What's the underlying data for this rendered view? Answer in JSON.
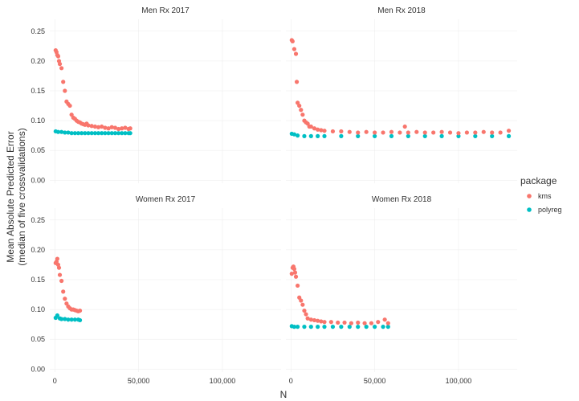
{
  "chart_data": {
    "type": "scatter",
    "ylabel_line1": "Mean Absolute Predicted Error",
    "ylabel_line2": "(median of five crossvalidations)",
    "xlabel": "N",
    "x_ticks": [
      0,
      50000,
      100000
    ],
    "x_tick_labels": [
      "0",
      "50,000",
      "100,000"
    ],
    "y_ticks": [
      0,
      0.05,
      0.1,
      0.15,
      0.2,
      0.25
    ],
    "y_tick_labels": [
      "0.00",
      "0.05",
      "0.10",
      "0.15",
      "0.20",
      "0.25"
    ],
    "xlim": [
      -3000,
      135000
    ],
    "ylim": [
      -0.005,
      0.27
    ],
    "legend": {
      "title": "package",
      "placement": "right",
      "entries": [
        {
          "name": "kms",
          "color": "#F8766D"
        },
        {
          "name": "polyreg",
          "color": "#00BFC4"
        }
      ]
    },
    "panels": [
      {
        "title": "Men Rx 2017",
        "series": [
          {
            "name": "kms",
            "color": "#F8766D",
            "x": [
              500,
              1000,
              1500,
              2000,
              2500,
              3000,
              4000,
              5000,
              6000,
              7000,
              8000,
              9000,
              10000,
              11000,
              12000,
              13000,
              14000,
              15000,
              16000,
              17000,
              18000,
              19000,
              20000,
              22000,
              24000,
              26000,
              28000,
              30000,
              32000,
              34000,
              36000,
              38000,
              40000,
              42000,
              44000,
              45000
            ],
            "y": [
              0.218,
              0.215,
              0.21,
              0.208,
              0.2,
              0.195,
              0.188,
              0.165,
              0.15,
              0.132,
              0.128,
              0.125,
              0.11,
              0.105,
              0.103,
              0.1,
              0.098,
              0.097,
              0.095,
              0.094,
              0.093,
              0.095,
              0.092,
              0.091,
              0.09,
              0.089,
              0.09,
              0.088,
              0.087,
              0.089,
              0.088,
              0.086,
              0.087,
              0.088,
              0.086,
              0.087
            ]
          },
          {
            "name": "polyreg",
            "color": "#00BFC4",
            "x": [
              500,
              2000,
              4000,
              6000,
              8000,
              10000,
              12000,
              14000,
              16000,
              18000,
              20000,
              22000,
              24000,
              26000,
              28000,
              30000,
              32000,
              34000,
              36000,
              38000,
              40000,
              42000,
              44000,
              45000
            ],
            "y": [
              0.082,
              0.081,
              0.081,
              0.08,
              0.08,
              0.079,
              0.079,
              0.079,
              0.079,
              0.079,
              0.079,
              0.079,
              0.079,
              0.079,
              0.079,
              0.079,
              0.079,
              0.079,
              0.079,
              0.079,
              0.079,
              0.079,
              0.079,
              0.079
            ]
          }
        ]
      },
      {
        "title": "Men Rx 2018",
        "series": [
          {
            "name": "kms",
            "color": "#F8766D",
            "x": [
              500,
              1000,
              2000,
              3000,
              3500,
              4000,
              5000,
              6000,
              7000,
              8000,
              9000,
              10000,
              11000,
              12000,
              14000,
              16000,
              18000,
              20000,
              25000,
              30000,
              35000,
              40000,
              45000,
              50000,
              55000,
              60000,
              65000,
              68000,
              70000,
              75000,
              80000,
              85000,
              90000,
              95000,
              100000,
              105000,
              110000,
              115000,
              120000,
              125000,
              130000
            ],
            "y": [
              0.235,
              0.233,
              0.22,
              0.212,
              0.165,
              0.13,
              0.125,
              0.118,
              0.11,
              0.1,
              0.097,
              0.095,
              0.09,
              0.09,
              0.087,
              0.085,
              0.084,
              0.083,
              0.082,
              0.082,
              0.081,
              0.08,
              0.081,
              0.08,
              0.08,
              0.081,
              0.08,
              0.09,
              0.08,
              0.081,
              0.08,
              0.08,
              0.081,
              0.08,
              0.079,
              0.08,
              0.08,
              0.081,
              0.08,
              0.08,
              0.083
            ]
          },
          {
            "name": "polyreg",
            "color": "#00BFC4",
            "x": [
              500,
              2000,
              4000,
              8000,
              12000,
              16000,
              20000,
              30000,
              40000,
              50000,
              60000,
              70000,
              80000,
              90000,
              100000,
              110000,
              120000,
              130000
            ],
            "y": [
              0.078,
              0.077,
              0.075,
              0.074,
              0.074,
              0.074,
              0.074,
              0.074,
              0.074,
              0.074,
              0.074,
              0.074,
              0.074,
              0.074,
              0.074,
              0.074,
              0.074,
              0.074
            ]
          }
        ]
      },
      {
        "title": "Women Rx 2017",
        "series": [
          {
            "name": "kms",
            "color": "#F8766D",
            "x": [
              500,
              1000,
              1500,
              2000,
              2500,
              3000,
              4000,
              5000,
              6000,
              7000,
              8000,
              9000,
              10000,
              11000,
              12000,
              13000,
              14000,
              15000
            ],
            "y": [
              0.178,
              0.18,
              0.185,
              0.175,
              0.17,
              0.158,
              0.148,
              0.13,
              0.118,
              0.11,
              0.105,
              0.102,
              0.1,
              0.1,
              0.099,
              0.098,
              0.097,
              0.098
            ]
          },
          {
            "name": "polyreg",
            "color": "#00BFC4",
            "x": [
              500,
              1500,
              3000,
              4000,
              6000,
              8000,
              10000,
              12000,
              14000,
              15000
            ],
            "y": [
              0.086,
              0.09,
              0.085,
              0.084,
              0.084,
              0.083,
              0.083,
              0.083,
              0.083,
              0.082
            ]
          }
        ]
      },
      {
        "title": "Women Rx 2018",
        "series": [
          {
            "name": "kms",
            "color": "#F8766D",
            "x": [
              500,
              1000,
              1500,
              2000,
              2500,
              3000,
              4000,
              5000,
              6000,
              7000,
              8000,
              9000,
              10000,
              12000,
              14000,
              16000,
              18000,
              20000,
              24000,
              28000,
              32000,
              36000,
              40000,
              44000,
              48000,
              52000,
              56000,
              58000
            ],
            "y": [
              0.16,
              0.17,
              0.172,
              0.168,
              0.162,
              0.155,
              0.14,
              0.12,
              0.115,
              0.108,
              0.098,
              0.092,
              0.085,
              0.083,
              0.082,
              0.081,
              0.08,
              0.079,
              0.079,
              0.078,
              0.078,
              0.077,
              0.078,
              0.077,
              0.077,
              0.079,
              0.083,
              0.077
            ]
          },
          {
            "name": "polyreg",
            "color": "#00BFC4",
            "x": [
              500,
              2000,
              4000,
              8000,
              12000,
              16000,
              20000,
              25000,
              30000,
              35000,
              40000,
              45000,
              50000,
              55000,
              58000
            ],
            "y": [
              0.072,
              0.071,
              0.071,
              0.071,
              0.071,
              0.071,
              0.071,
              0.071,
              0.071,
              0.071,
              0.071,
              0.071,
              0.071,
              0.071,
              0.071
            ]
          }
        ]
      }
    ]
  }
}
